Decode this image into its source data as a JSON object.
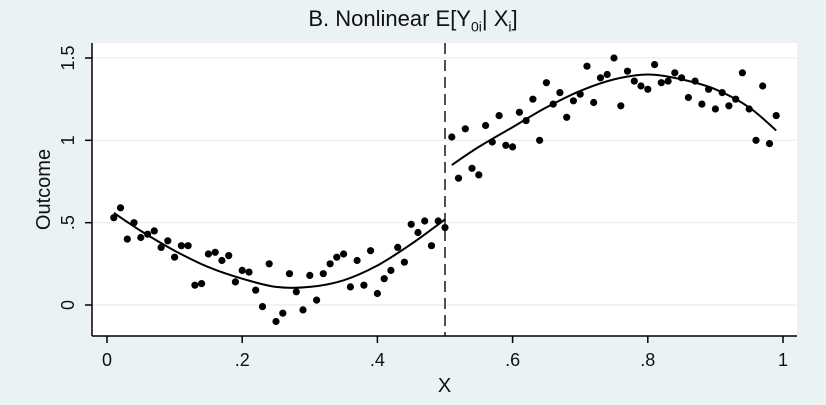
{
  "chart_data": {
    "type": "scatter",
    "title": {
      "prefix": "B. Nonlinear E[Y",
      "sub1": "0i",
      "middle": "| X",
      "sub2": "i",
      "suffix": "]"
    },
    "xlabel": "X",
    "ylabel": "Outcome",
    "xlim": [
      0,
      1
    ],
    "ylim": [
      -0.1,
      1.5
    ],
    "x_ticks": [
      0,
      0.2,
      0.4,
      0.6,
      0.8,
      1
    ],
    "x_tick_labels": [
      "0",
      ".2",
      ".4",
      ".6",
      ".8",
      "1"
    ],
    "y_ticks": [
      0,
      0.5,
      1,
      1.5
    ],
    "y_tick_labels": [
      "0",
      ".5",
      "1",
      "1.5"
    ],
    "grid": "horizontal",
    "cutoff": 0.5,
    "points": [
      {
        "x": 0.01,
        "y": 0.53
      },
      {
        "x": 0.02,
        "y": 0.59
      },
      {
        "x": 0.03,
        "y": 0.4
      },
      {
        "x": 0.04,
        "y": 0.5
      },
      {
        "x": 0.05,
        "y": 0.41
      },
      {
        "x": 0.06,
        "y": 0.43
      },
      {
        "x": 0.07,
        "y": 0.45
      },
      {
        "x": 0.08,
        "y": 0.35
      },
      {
        "x": 0.09,
        "y": 0.39
      },
      {
        "x": 0.1,
        "y": 0.29
      },
      {
        "x": 0.11,
        "y": 0.36
      },
      {
        "x": 0.12,
        "y": 0.36
      },
      {
        "x": 0.13,
        "y": 0.12
      },
      {
        "x": 0.14,
        "y": 0.13
      },
      {
        "x": 0.15,
        "y": 0.31
      },
      {
        "x": 0.16,
        "y": 0.32
      },
      {
        "x": 0.17,
        "y": 0.27
      },
      {
        "x": 0.18,
        "y": 0.3
      },
      {
        "x": 0.19,
        "y": 0.14
      },
      {
        "x": 0.2,
        "y": 0.21
      },
      {
        "x": 0.21,
        "y": 0.2
      },
      {
        "x": 0.22,
        "y": 0.09
      },
      {
        "x": 0.23,
        "y": -0.01
      },
      {
        "x": 0.24,
        "y": 0.25
      },
      {
        "x": 0.25,
        "y": -0.1
      },
      {
        "x": 0.26,
        "y": -0.05
      },
      {
        "x": 0.27,
        "y": 0.19
      },
      {
        "x": 0.28,
        "y": 0.08
      },
      {
        "x": 0.29,
        "y": -0.03
      },
      {
        "x": 0.3,
        "y": 0.18
      },
      {
        "x": 0.31,
        "y": 0.03
      },
      {
        "x": 0.32,
        "y": 0.19
      },
      {
        "x": 0.33,
        "y": 0.25
      },
      {
        "x": 0.34,
        "y": 0.29
      },
      {
        "x": 0.35,
        "y": 0.31
      },
      {
        "x": 0.36,
        "y": 0.11
      },
      {
        "x": 0.37,
        "y": 0.27
      },
      {
        "x": 0.38,
        "y": 0.12
      },
      {
        "x": 0.39,
        "y": 0.33
      },
      {
        "x": 0.4,
        "y": 0.07
      },
      {
        "x": 0.41,
        "y": 0.16
      },
      {
        "x": 0.42,
        "y": 0.21
      },
      {
        "x": 0.43,
        "y": 0.35
      },
      {
        "x": 0.44,
        "y": 0.26
      },
      {
        "x": 0.45,
        "y": 0.49
      },
      {
        "x": 0.46,
        "y": 0.44
      },
      {
        "x": 0.47,
        "y": 0.51
      },
      {
        "x": 0.48,
        "y": 0.36
      },
      {
        "x": 0.49,
        "y": 0.51
      },
      {
        "x": 0.5,
        "y": 0.47
      },
      {
        "x": 0.51,
        "y": 1.02
      },
      {
        "x": 0.52,
        "y": 0.77
      },
      {
        "x": 0.53,
        "y": 1.07
      },
      {
        "x": 0.54,
        "y": 0.83
      },
      {
        "x": 0.55,
        "y": 0.79
      },
      {
        "x": 0.56,
        "y": 1.09
      },
      {
        "x": 0.57,
        "y": 0.99
      },
      {
        "x": 0.58,
        "y": 1.15
      },
      {
        "x": 0.59,
        "y": 0.97
      },
      {
        "x": 0.6,
        "y": 0.96
      },
      {
        "x": 0.61,
        "y": 1.17
      },
      {
        "x": 0.62,
        "y": 1.12
      },
      {
        "x": 0.63,
        "y": 1.25
      },
      {
        "x": 0.64,
        "y": 1.0
      },
      {
        "x": 0.65,
        "y": 1.35
      },
      {
        "x": 0.66,
        "y": 1.22
      },
      {
        "x": 0.67,
        "y": 1.29
      },
      {
        "x": 0.68,
        "y": 1.14
      },
      {
        "x": 0.69,
        "y": 1.24
      },
      {
        "x": 0.7,
        "y": 1.28
      },
      {
        "x": 0.71,
        "y": 1.45
      },
      {
        "x": 0.72,
        "y": 1.23
      },
      {
        "x": 0.73,
        "y": 1.38
      },
      {
        "x": 0.74,
        "y": 1.4
      },
      {
        "x": 0.75,
        "y": 1.5
      },
      {
        "x": 0.76,
        "y": 1.21
      },
      {
        "x": 0.77,
        "y": 1.42
      },
      {
        "x": 0.78,
        "y": 1.36
      },
      {
        "x": 0.79,
        "y": 1.33
      },
      {
        "x": 0.8,
        "y": 1.31
      },
      {
        "x": 0.81,
        "y": 1.46
      },
      {
        "x": 0.82,
        "y": 1.35
      },
      {
        "x": 0.83,
        "y": 1.36
      },
      {
        "x": 0.84,
        "y": 1.41
      },
      {
        "x": 0.85,
        "y": 1.38
      },
      {
        "x": 0.86,
        "y": 1.26
      },
      {
        "x": 0.87,
        "y": 1.36
      },
      {
        "x": 0.88,
        "y": 1.22
      },
      {
        "x": 0.89,
        "y": 1.31
      },
      {
        "x": 0.9,
        "y": 1.19
      },
      {
        "x": 0.91,
        "y": 1.29
      },
      {
        "x": 0.92,
        "y": 1.21
      },
      {
        "x": 0.93,
        "y": 1.25
      },
      {
        "x": 0.94,
        "y": 1.41
      },
      {
        "x": 0.95,
        "y": 1.19
      },
      {
        "x": 0.96,
        "y": 1.0
      },
      {
        "x": 0.97,
        "y": 1.33
      },
      {
        "x": 0.98,
        "y": 0.98
      },
      {
        "x": 0.99,
        "y": 1.15
      }
    ],
    "fit_left": [
      {
        "x": 0.01,
        "y": 0.56
      },
      {
        "x": 0.05,
        "y": 0.45
      },
      {
        "x": 0.1,
        "y": 0.33
      },
      {
        "x": 0.15,
        "y": 0.23
      },
      {
        "x": 0.2,
        "y": 0.16
      },
      {
        "x": 0.25,
        "y": 0.11
      },
      {
        "x": 0.3,
        "y": 0.11
      },
      {
        "x": 0.35,
        "y": 0.15
      },
      {
        "x": 0.4,
        "y": 0.24
      },
      {
        "x": 0.45,
        "y": 0.37
      },
      {
        "x": 0.5,
        "y": 0.52
      }
    ],
    "fit_right": [
      {
        "x": 0.51,
        "y": 0.85
      },
      {
        "x": 0.55,
        "y": 0.96
      },
      {
        "x": 0.6,
        "y": 1.08
      },
      {
        "x": 0.65,
        "y": 1.2
      },
      {
        "x": 0.7,
        "y": 1.3
      },
      {
        "x": 0.75,
        "y": 1.37
      },
      {
        "x": 0.8,
        "y": 1.4
      },
      {
        "x": 0.85,
        "y": 1.37
      },
      {
        "x": 0.9,
        "y": 1.31
      },
      {
        "x": 0.95,
        "y": 1.2
      },
      {
        "x": 0.99,
        "y": 1.06
      }
    ],
    "colors": {
      "background": "#eaf2f3",
      "plot_background": "#ffffff",
      "grid": "#e6eef0",
      "points": "#000000",
      "fit_line": "#000000",
      "cutoff_line": "#505050"
    }
  }
}
